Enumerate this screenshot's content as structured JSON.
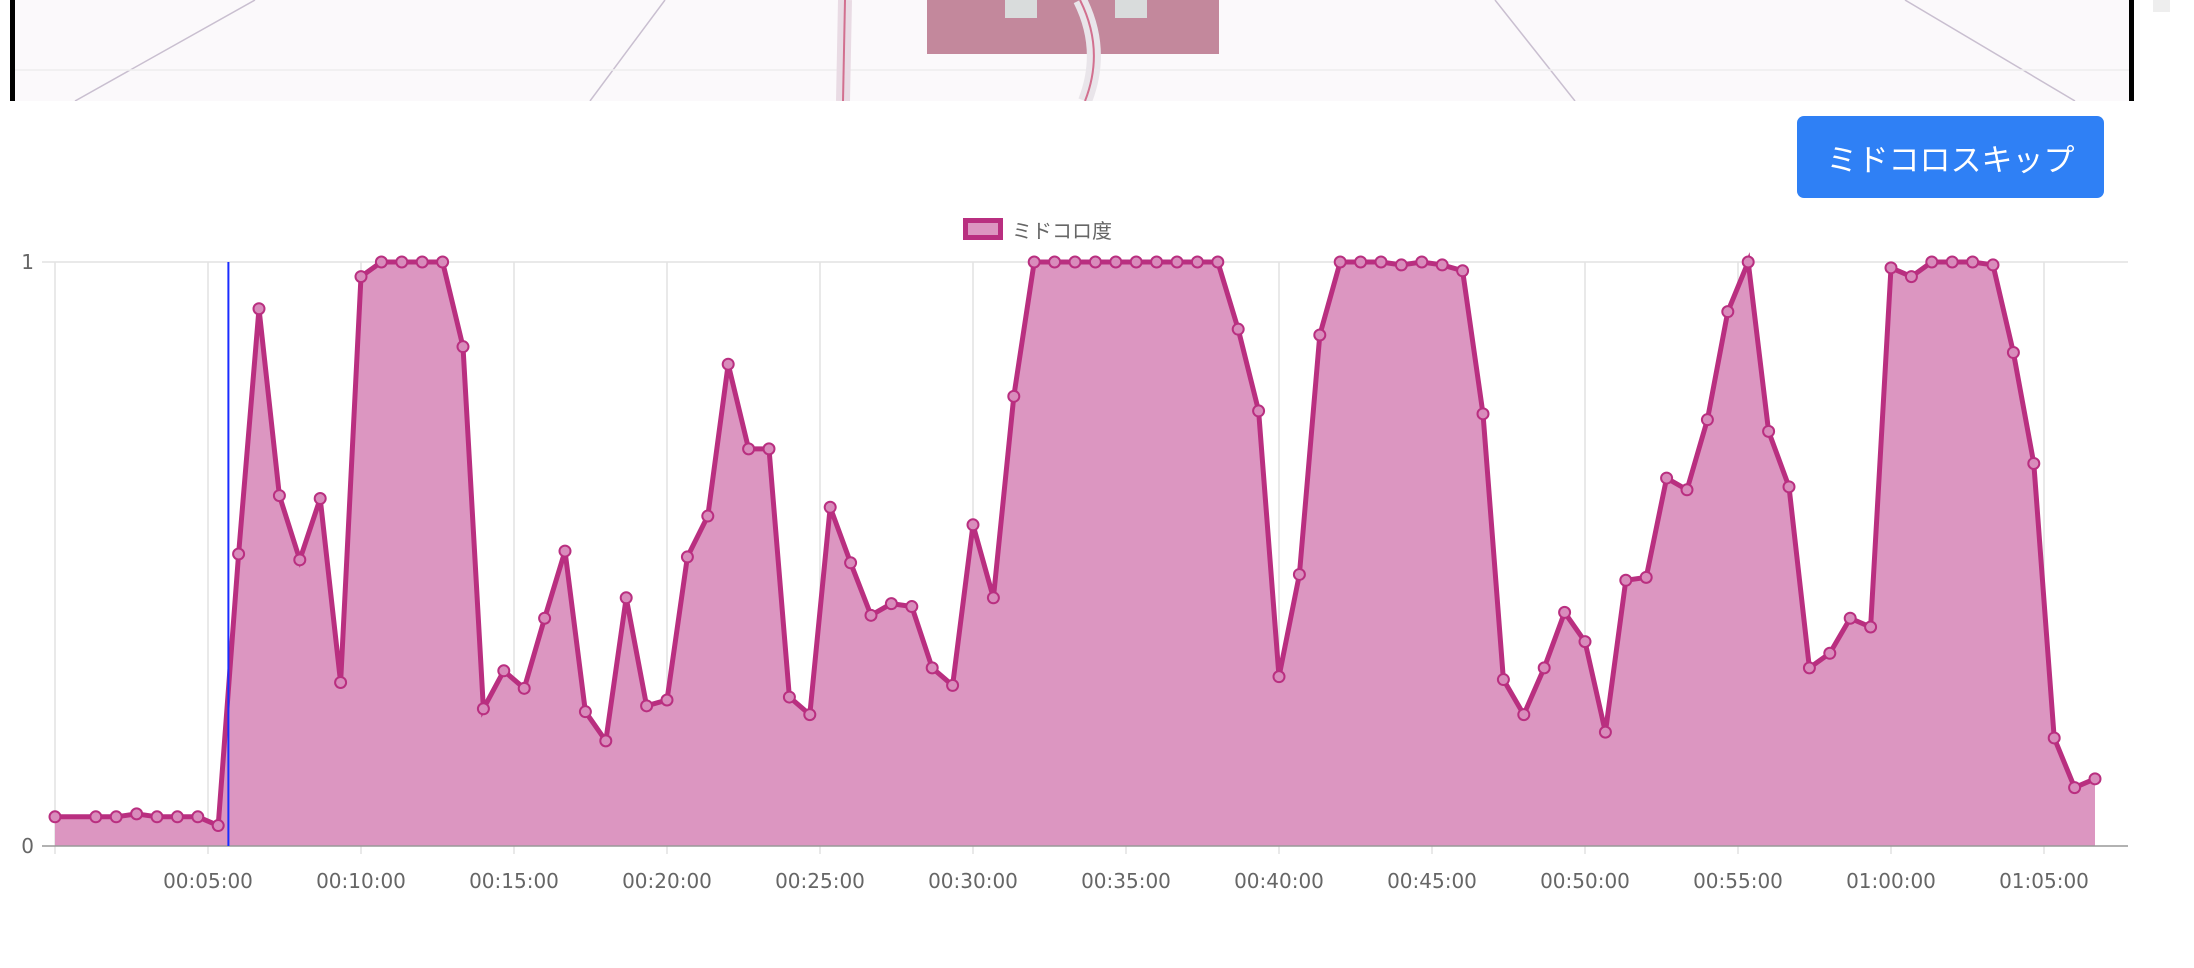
{
  "video": {
    "description_hidden": null
  },
  "skip_button": {
    "label": "ミドコロスキップ"
  },
  "chart_data": {
    "type": "area",
    "legend": [
      {
        "name": "ミドコロ度",
        "placement": "top-center"
      }
    ],
    "series": [
      {
        "name": "ミドコロ度",
        "line_color": "#b92f80",
        "fill_color": "#dc96c1"
      }
    ],
    "x": [
      "00:00:00",
      "00:01:20",
      "00:02:00",
      "00:02:40",
      "00:03:20",
      "00:04:00",
      "00:04:40",
      "00:05:20",
      "00:06:00",
      "00:06:40",
      "00:07:20",
      "00:08:00",
      "00:08:40",
      "00:09:20",
      "00:10:00",
      "00:10:40",
      "00:11:20",
      "00:12:00",
      "00:12:40",
      "00:13:20",
      "00:14:00",
      "00:14:40",
      "00:15:20",
      "00:16:00",
      "00:16:40",
      "00:17:20",
      "00:18:00",
      "00:18:40",
      "00:19:20",
      "00:20:00",
      "00:20:40",
      "00:21:20",
      "00:22:00",
      "00:22:40",
      "00:23:20",
      "00:24:00",
      "00:24:40",
      "00:25:20",
      "00:26:00",
      "00:26:40",
      "00:27:20",
      "00:28:00",
      "00:28:40",
      "00:29:20",
      "00:30:00",
      "00:30:40",
      "00:31:20",
      "00:32:00",
      "00:32:40",
      "00:33:20",
      "00:34:00",
      "00:34:40",
      "00:35:20",
      "00:36:00",
      "00:36:40",
      "00:37:20",
      "00:38:00",
      "00:38:40",
      "00:39:20",
      "00:40:00",
      "00:40:40",
      "00:41:20",
      "00:42:00",
      "00:42:40",
      "00:43:20",
      "00:44:00",
      "00:44:40",
      "00:45:20",
      "00:46:00",
      "00:46:40",
      "00:47:20",
      "00:48:00",
      "00:48:40",
      "00:49:20",
      "00:50:00",
      "00:50:40",
      "00:51:20",
      "00:52:00",
      "00:52:40",
      "00:53:20",
      "00:54:00",
      "00:54:40",
      "00:55:20",
      "00:56:00",
      "00:56:40",
      "00:57:20",
      "00:58:00",
      "00:58:40",
      "00:59:20",
      "01:00:00",
      "01:00:40",
      "01:01:20",
      "01:02:00",
      "01:02:40",
      "01:03:20",
      "01:04:00",
      "01:04:40",
      "01:05:20",
      "01:06:00",
      "01:06:40"
    ],
    "values": [
      0.05,
      0.05,
      0.05,
      0.055,
      0.05,
      0.05,
      0.05,
      0.035,
      0.5,
      0.92,
      0.6,
      0.49,
      0.595,
      0.28,
      0.975,
      1,
      1,
      1,
      1,
      0.855,
      0.235,
      0.3,
      0.27,
      0.39,
      0.505,
      0.23,
      0.18,
      0.425,
      0.24,
      0.25,
      0.495,
      0.565,
      0.825,
      0.68,
      0.68,
      0.255,
      0.225,
      0.58,
      0.485,
      0.395,
      0.415,
      0.41,
      0.305,
      0.275,
      0.55,
      0.425,
      0.77,
      1,
      1,
      1,
      1,
      1,
      1,
      1,
      1,
      1,
      1,
      0.885,
      0.745,
      0.29,
      0.465,
      0.875,
      1,
      1,
      1,
      0.995,
      1,
      0.995,
      0.985,
      0.74,
      0.285,
      0.225,
      0.305,
      0.4,
      0.35,
      0.195,
      0.455,
      0.46,
      0.63,
      0.61,
      0.73,
      0.915,
      1,
      0.71,
      0.615,
      0.305,
      0.33,
      0.39,
      0.375,
      0.99,
      0.975,
      1,
      1,
      1,
      0.995,
      0.845,
      0.655,
      0.185,
      0.1,
      0.115
    ],
    "ylim": [
      0,
      1
    ],
    "yticks": [
      "0",
      "1"
    ],
    "xticks": [
      "00:05:00",
      "00:10:00",
      "00:15:00",
      "00:20:00",
      "00:25:00",
      "00:30:00",
      "00:35:00",
      "00:40:00",
      "00:45:00",
      "00:50:00",
      "00:55:00",
      "01:00:00",
      "01:05:00"
    ],
    "xlim": [
      "00:00:00",
      "01:08:00"
    ],
    "grid": true,
    "cursor": {
      "time": "00:05:40",
      "color": "#1a2cff"
    }
  }
}
